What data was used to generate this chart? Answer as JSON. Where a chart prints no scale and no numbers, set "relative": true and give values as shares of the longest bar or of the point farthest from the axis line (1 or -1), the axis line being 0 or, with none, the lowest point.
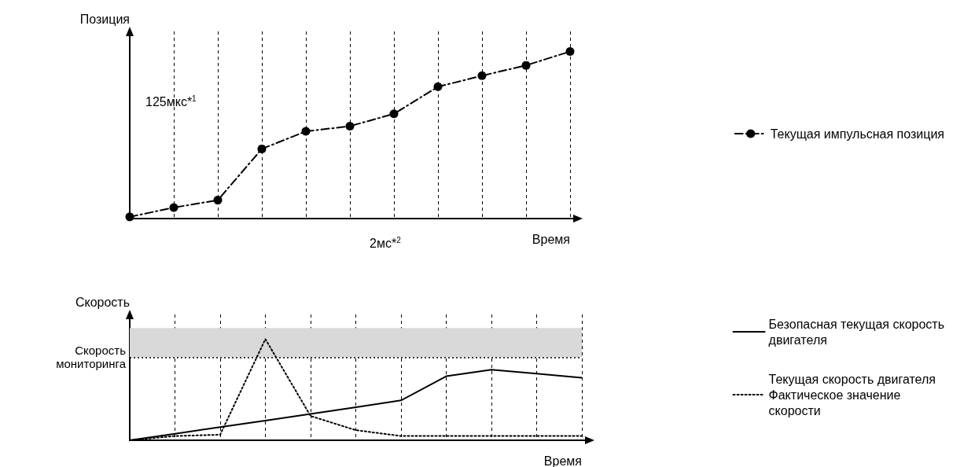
{
  "chart_data": [
    {
      "type": "line",
      "relative": true,
      "ylabel": "Позиция",
      "xlabel": "Время",
      "categories": [
        null,
        null,
        null,
        null,
        null,
        null,
        null,
        null,
        null,
        null,
        null
      ],
      "series": [
        {
          "name": "Текущая импульсная позиция",
          "color": "#000000",
          "values": [
            0.01,
            0.066,
            0.11,
            0.417,
            0.522,
            0.553,
            0.627,
            0.789,
            0.855,
            0.917,
            1
          ]
        }
      ],
      "marker": "circle",
      "line_style": "dashed",
      "grid": "x",
      "legend": "right",
      "annotations": [
        "125мкс*$^{1}$",
        "2мс*$^{2}$"
      ]
    },
    {
      "type": "line",
      "relative": true,
      "ylabel": "Скорость",
      "xlabel": "Время",
      "categories": [
        null,
        null,
        null,
        null,
        null,
        null,
        null,
        null,
        null,
        null,
        null
      ],
      "series": [
        {
          "name": "Безопасная текущая скорость двигателя",
          "color": "#000000",
          "line_style": "solid",
          "values": [
            0,
            0.064,
            0.13,
            0.195,
            0.26,
            0.327,
            0.394,
            0.633,
            0.697,
            0.659,
            0.618
          ]
        },
        {
          "name": "Текущая скорость двигателя Фактическое значение скорости",
          "color": "#000000",
          "line_style": "dotted",
          "values": [
            0,
            0.042,
            0.055,
            1,
            0.24,
            0.1,
            0.042,
            0.042,
            0.042,
            0.042,
            0.042
          ]
        }
      ],
      "marker": "none",
      "grid": "x",
      "legend": "right",
      "ref_lines": [
        {
          "axis": "y",
          "value": 0.818,
          "label": "Скорость мониторинга",
          "line_style": "dotted",
          "color": "#000000"
        }
      ],
      "bands": [
        {
          "axis": "y",
          "from": 0.818,
          "to": 1.11,
          "color": "#d9d9d9"
        }
      ]
    }
  ]
}
